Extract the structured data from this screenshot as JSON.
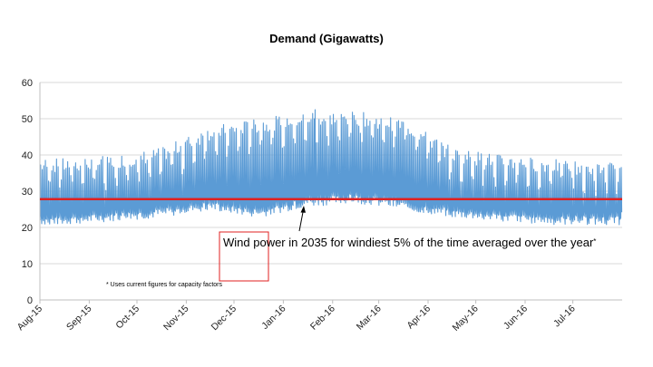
{
  "chart_data": {
    "type": "line",
    "title": "Demand (Gigawatts)",
    "xlabel": "",
    "ylabel": "",
    "ylim": [
      0,
      60
    ],
    "yticks": [
      0,
      10,
      20,
      30,
      40,
      50,
      60
    ],
    "grid": true,
    "x_tick_labels": [
      "Aug-15",
      "Sep-15",
      "Oct-15",
      "Nov-15",
      "Dec-15",
      "Jan-16",
      "Feb-16",
      "Mar-16",
      "Apr-16",
      "May-16",
      "Jun-16",
      "Jul-16"
    ],
    "month_days": [
      31,
      30,
      31,
      30,
      31,
      31,
      29,
      31,
      30,
      31,
      30,
      31
    ],
    "series": [
      {
        "name": "Demand",
        "color": "#5b9bd5",
        "resolution": "half-hourly, drawn as daily min-max envelope",
        "daily_min_by_month": [
          22,
          23,
          24,
          26,
          24,
          27,
          28,
          26,
          24,
          23,
          22,
          22
        ],
        "daily_max_by_month": [
          37,
          38,
          40,
          46,
          48,
          50,
          50,
          48,
          40,
          38,
          37,
          36
        ],
        "peak_value": 52.5,
        "peak_month": "Jan-16"
      },
      {
        "name": "Wind power in 2035 for windiest 5% of the time averaged over the year",
        "color": "#e02020",
        "type": "hline",
        "value": 27.8
      }
    ],
    "annotations": {
      "main": "Wind power in 2035 for windiest 5% of the time averaged over the year",
      "main_suffix": "*",
      "footnote": "* Uses current figures for capacity factors"
    }
  }
}
